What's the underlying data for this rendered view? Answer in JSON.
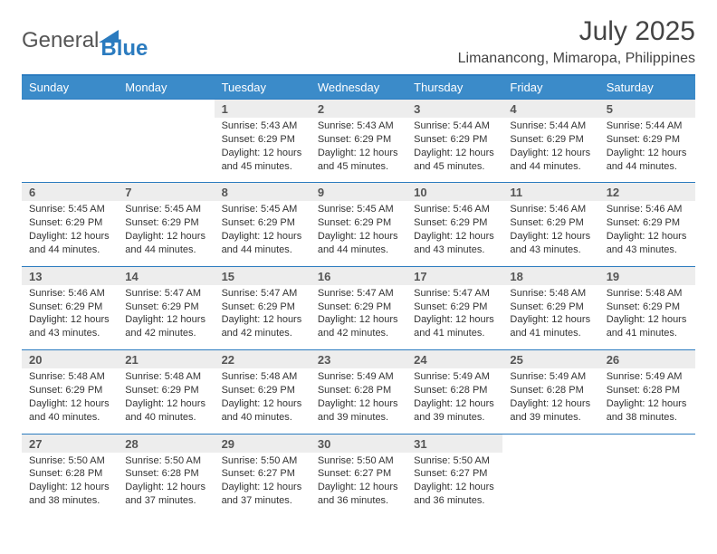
{
  "brand": {
    "word1": "General",
    "word2": "Blue",
    "word1_color": "#555555",
    "word2_color": "#2b7bbf",
    "triangle_color": "#2b7bbf"
  },
  "title": "July 2025",
  "location": "Limanancong, Mimaropa, Philippines",
  "colors": {
    "header_bg": "#3b8bc9",
    "header_text": "#ffffff",
    "daynum_bg": "#ededed",
    "border": "#2b7bbf",
    "text": "#333333"
  },
  "days_of_week": [
    "Sunday",
    "Monday",
    "Tuesday",
    "Wednesday",
    "Thursday",
    "Friday",
    "Saturday"
  ],
  "weeks": [
    [
      {
        "n": "",
        "sunrise": "",
        "sunset": "",
        "daylight1": "",
        "daylight2": ""
      },
      {
        "n": "",
        "sunrise": "",
        "sunset": "",
        "daylight1": "",
        "daylight2": ""
      },
      {
        "n": "1",
        "sunrise": "Sunrise: 5:43 AM",
        "sunset": "Sunset: 6:29 PM",
        "daylight1": "Daylight: 12 hours",
        "daylight2": "and 45 minutes."
      },
      {
        "n": "2",
        "sunrise": "Sunrise: 5:43 AM",
        "sunset": "Sunset: 6:29 PM",
        "daylight1": "Daylight: 12 hours",
        "daylight2": "and 45 minutes."
      },
      {
        "n": "3",
        "sunrise": "Sunrise: 5:44 AM",
        "sunset": "Sunset: 6:29 PM",
        "daylight1": "Daylight: 12 hours",
        "daylight2": "and 45 minutes."
      },
      {
        "n": "4",
        "sunrise": "Sunrise: 5:44 AM",
        "sunset": "Sunset: 6:29 PM",
        "daylight1": "Daylight: 12 hours",
        "daylight2": "and 44 minutes."
      },
      {
        "n": "5",
        "sunrise": "Sunrise: 5:44 AM",
        "sunset": "Sunset: 6:29 PM",
        "daylight1": "Daylight: 12 hours",
        "daylight2": "and 44 minutes."
      }
    ],
    [
      {
        "n": "6",
        "sunrise": "Sunrise: 5:45 AM",
        "sunset": "Sunset: 6:29 PM",
        "daylight1": "Daylight: 12 hours",
        "daylight2": "and 44 minutes."
      },
      {
        "n": "7",
        "sunrise": "Sunrise: 5:45 AM",
        "sunset": "Sunset: 6:29 PM",
        "daylight1": "Daylight: 12 hours",
        "daylight2": "and 44 minutes."
      },
      {
        "n": "8",
        "sunrise": "Sunrise: 5:45 AM",
        "sunset": "Sunset: 6:29 PM",
        "daylight1": "Daylight: 12 hours",
        "daylight2": "and 44 minutes."
      },
      {
        "n": "9",
        "sunrise": "Sunrise: 5:45 AM",
        "sunset": "Sunset: 6:29 PM",
        "daylight1": "Daylight: 12 hours",
        "daylight2": "and 44 minutes."
      },
      {
        "n": "10",
        "sunrise": "Sunrise: 5:46 AM",
        "sunset": "Sunset: 6:29 PM",
        "daylight1": "Daylight: 12 hours",
        "daylight2": "and 43 minutes."
      },
      {
        "n": "11",
        "sunrise": "Sunrise: 5:46 AM",
        "sunset": "Sunset: 6:29 PM",
        "daylight1": "Daylight: 12 hours",
        "daylight2": "and 43 minutes."
      },
      {
        "n": "12",
        "sunrise": "Sunrise: 5:46 AM",
        "sunset": "Sunset: 6:29 PM",
        "daylight1": "Daylight: 12 hours",
        "daylight2": "and 43 minutes."
      }
    ],
    [
      {
        "n": "13",
        "sunrise": "Sunrise: 5:46 AM",
        "sunset": "Sunset: 6:29 PM",
        "daylight1": "Daylight: 12 hours",
        "daylight2": "and 43 minutes."
      },
      {
        "n": "14",
        "sunrise": "Sunrise: 5:47 AM",
        "sunset": "Sunset: 6:29 PM",
        "daylight1": "Daylight: 12 hours",
        "daylight2": "and 42 minutes."
      },
      {
        "n": "15",
        "sunrise": "Sunrise: 5:47 AM",
        "sunset": "Sunset: 6:29 PM",
        "daylight1": "Daylight: 12 hours",
        "daylight2": "and 42 minutes."
      },
      {
        "n": "16",
        "sunrise": "Sunrise: 5:47 AM",
        "sunset": "Sunset: 6:29 PM",
        "daylight1": "Daylight: 12 hours",
        "daylight2": "and 42 minutes."
      },
      {
        "n": "17",
        "sunrise": "Sunrise: 5:47 AM",
        "sunset": "Sunset: 6:29 PM",
        "daylight1": "Daylight: 12 hours",
        "daylight2": "and 41 minutes."
      },
      {
        "n": "18",
        "sunrise": "Sunrise: 5:48 AM",
        "sunset": "Sunset: 6:29 PM",
        "daylight1": "Daylight: 12 hours",
        "daylight2": "and 41 minutes."
      },
      {
        "n": "19",
        "sunrise": "Sunrise: 5:48 AM",
        "sunset": "Sunset: 6:29 PM",
        "daylight1": "Daylight: 12 hours",
        "daylight2": "and 41 minutes."
      }
    ],
    [
      {
        "n": "20",
        "sunrise": "Sunrise: 5:48 AM",
        "sunset": "Sunset: 6:29 PM",
        "daylight1": "Daylight: 12 hours",
        "daylight2": "and 40 minutes."
      },
      {
        "n": "21",
        "sunrise": "Sunrise: 5:48 AM",
        "sunset": "Sunset: 6:29 PM",
        "daylight1": "Daylight: 12 hours",
        "daylight2": "and 40 minutes."
      },
      {
        "n": "22",
        "sunrise": "Sunrise: 5:48 AM",
        "sunset": "Sunset: 6:29 PM",
        "daylight1": "Daylight: 12 hours",
        "daylight2": "and 40 minutes."
      },
      {
        "n": "23",
        "sunrise": "Sunrise: 5:49 AM",
        "sunset": "Sunset: 6:28 PM",
        "daylight1": "Daylight: 12 hours",
        "daylight2": "and 39 minutes."
      },
      {
        "n": "24",
        "sunrise": "Sunrise: 5:49 AM",
        "sunset": "Sunset: 6:28 PM",
        "daylight1": "Daylight: 12 hours",
        "daylight2": "and 39 minutes."
      },
      {
        "n": "25",
        "sunrise": "Sunrise: 5:49 AM",
        "sunset": "Sunset: 6:28 PM",
        "daylight1": "Daylight: 12 hours",
        "daylight2": "and 39 minutes."
      },
      {
        "n": "26",
        "sunrise": "Sunrise: 5:49 AM",
        "sunset": "Sunset: 6:28 PM",
        "daylight1": "Daylight: 12 hours",
        "daylight2": "and 38 minutes."
      }
    ],
    [
      {
        "n": "27",
        "sunrise": "Sunrise: 5:50 AM",
        "sunset": "Sunset: 6:28 PM",
        "daylight1": "Daylight: 12 hours",
        "daylight2": "and 38 minutes."
      },
      {
        "n": "28",
        "sunrise": "Sunrise: 5:50 AM",
        "sunset": "Sunset: 6:28 PM",
        "daylight1": "Daylight: 12 hours",
        "daylight2": "and 37 minutes."
      },
      {
        "n": "29",
        "sunrise": "Sunrise: 5:50 AM",
        "sunset": "Sunset: 6:27 PM",
        "daylight1": "Daylight: 12 hours",
        "daylight2": "and 37 minutes."
      },
      {
        "n": "30",
        "sunrise": "Sunrise: 5:50 AM",
        "sunset": "Sunset: 6:27 PM",
        "daylight1": "Daylight: 12 hours",
        "daylight2": "and 36 minutes."
      },
      {
        "n": "31",
        "sunrise": "Sunrise: 5:50 AM",
        "sunset": "Sunset: 6:27 PM",
        "daylight1": "Daylight: 12 hours",
        "daylight2": "and 36 minutes."
      },
      {
        "n": "",
        "sunrise": "",
        "sunset": "",
        "daylight1": "",
        "daylight2": ""
      },
      {
        "n": "",
        "sunrise": "",
        "sunset": "",
        "daylight1": "",
        "daylight2": ""
      }
    ]
  ]
}
